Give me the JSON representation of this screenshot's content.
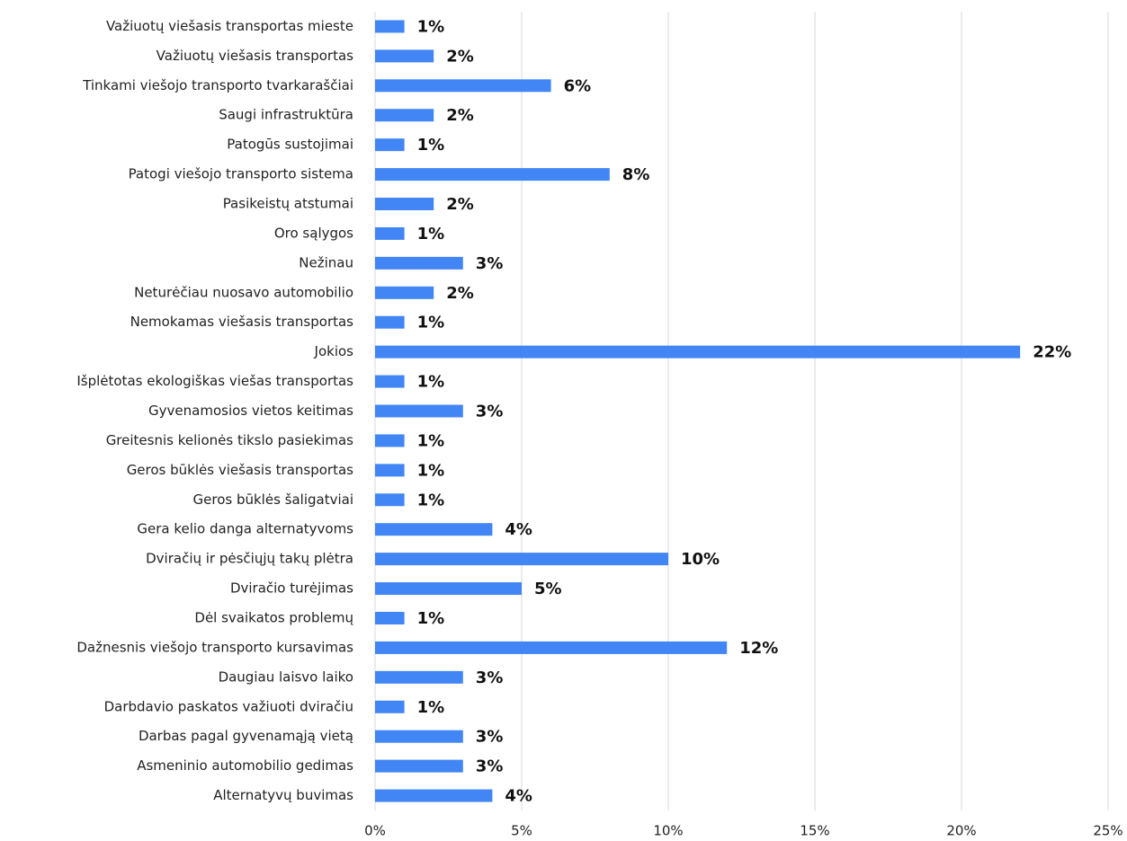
{
  "chart_data": {
    "type": "bar",
    "orientation": "horizontal",
    "color": "#4285f4",
    "grid": true,
    "categories": [
      "Važiuotų viešasis transportas mieste",
      "Važiuotų viešasis transportas",
      "Tinkami viešojo transporto tvarkaraščiai",
      "Saugi infrastruktūra",
      "Patogūs sustojimai",
      "Patogi viešojo transporto sistema",
      "Pasikeistų atstumai",
      "Oro sąlygos",
      "Nežinau",
      "Neturėčiau nuosavo automobilio",
      "Nemokamas viešasis transportas",
      "Jokios",
      "Išplėtotas ekologiškas viešas transportas",
      "Gyvenamosios vietos keitimas",
      "Greitesnis kelionės tikslo pasiekimas",
      "Geros būklės viešasis transportas",
      "Geros būklės šaligatviai",
      "Gera kelio danga alternatyvoms",
      "Dviračių ir pėsčiųjų takų plėtra",
      "Dviračio turėjimas",
      "Dėl svaikatos problemų",
      "Dažnesnis viešojo transporto kursavimas",
      "Daugiau laisvo laiko",
      "Darbdavio paskatos važiuoti dviračiu",
      "Darbas pagal gyvenamąją vietą",
      "Asmeninio automobilio gedimas",
      "Alternatyvų buvimas"
    ],
    "values": [
      1,
      2,
      6,
      2,
      1,
      8,
      2,
      1,
      3,
      2,
      1,
      22,
      1,
      3,
      1,
      1,
      1,
      4,
      10,
      5,
      1,
      12,
      3,
      1,
      3,
      3,
      4
    ],
    "value_labels": [
      "1%",
      "2%",
      "6%",
      "2%",
      "1%",
      "8%",
      "2%",
      "1%",
      "3%",
      "2%",
      "1%",
      "22%",
      "1%",
      "3%",
      "1%",
      "1%",
      "1%",
      "4%",
      "10%",
      "5%",
      "1%",
      "12%",
      "3%",
      "1%",
      "3%",
      "3%",
      "4%"
    ],
    "xlim": [
      0,
      25
    ],
    "xticks": [
      {
        "value": 0,
        "label": "0%"
      },
      {
        "value": 5,
        "label": "5%"
      },
      {
        "value": 10,
        "label": "10%"
      },
      {
        "value": 15,
        "label": "15%"
      },
      {
        "value": 20,
        "label": "20%"
      },
      {
        "value": 25,
        "label": "25%"
      }
    ]
  }
}
